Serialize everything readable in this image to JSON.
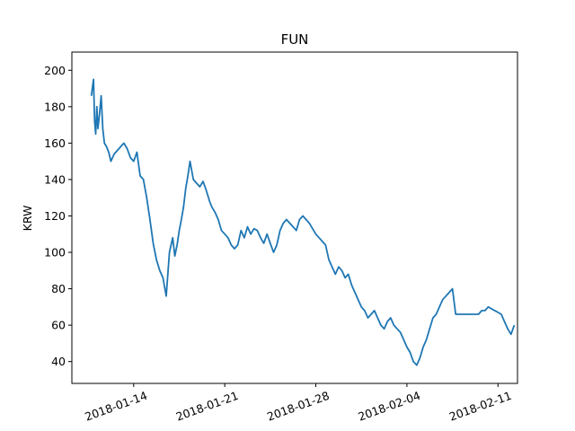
{
  "chart_data": {
    "type": "line",
    "title": "FUN",
    "xlabel": "",
    "ylabel": "KRW",
    "xlim": [
      "2018-01-09T06:00",
      "2018-02-12T12:00"
    ],
    "ylim": [
      28,
      210
    ],
    "x_ticks": [
      "2018-01-14",
      "2018-01-21",
      "2018-01-28",
      "2018-02-04",
      "2018-02-11"
    ],
    "y_ticks": [
      40,
      60,
      80,
      100,
      120,
      140,
      160,
      180,
      200
    ],
    "grid": false,
    "legend": "none",
    "colors": {
      "line": "#1f77b4",
      "axes": "#000000",
      "background": "#ffffff"
    },
    "series": [
      {
        "x": [
          "2018-01-10T18:00",
          "2018-01-10T22:00",
          "2018-01-11T00:00",
          "2018-01-11T02:00",
          "2018-01-11T04:00",
          "2018-01-11T06:00",
          "2018-01-11T09:00",
          "2018-01-11T12:00",
          "2018-01-11T15:00",
          "2018-01-11T18:00",
          "2018-01-11T22:00",
          "2018-01-12T02:00",
          "2018-01-12T06:00",
          "2018-01-12T12:00",
          "2018-01-12T18:00",
          "2018-01-13T00:00",
          "2018-01-13T06:00",
          "2018-01-13T12:00",
          "2018-01-13T18:00",
          "2018-01-14T00:00",
          "2018-01-14T06:00",
          "2018-01-14T12:00",
          "2018-01-14T18:00",
          "2018-01-15T00:00",
          "2018-01-15T06:00",
          "2018-01-15T12:00",
          "2018-01-15T18:00",
          "2018-01-16T00:00",
          "2018-01-16T06:00",
          "2018-01-16T12:00",
          "2018-01-16T18:00",
          "2018-01-17T00:00",
          "2018-01-17T04:00",
          "2018-01-17T08:00",
          "2018-01-17T12:00",
          "2018-01-17T16:00",
          "2018-01-17T20:00",
          "2018-01-18T00:00",
          "2018-01-18T04:00",
          "2018-01-18T08:00",
          "2018-01-18T14:00",
          "2018-01-18T20:00",
          "2018-01-19T02:00",
          "2018-01-19T08:00",
          "2018-01-19T14:00",
          "2018-01-19T20:00",
          "2018-01-20T00:00",
          "2018-01-20T06:00",
          "2018-01-20T12:00",
          "2018-01-20T18:00",
          "2018-01-21T00:00",
          "2018-01-21T06:00",
          "2018-01-21T12:00",
          "2018-01-21T18:00",
          "2018-01-22T00:00",
          "2018-01-22T06:00",
          "2018-01-22T12:00",
          "2018-01-22T18:00",
          "2018-01-23T00:00",
          "2018-01-23T06:00",
          "2018-01-23T12:00",
          "2018-01-23T18:00",
          "2018-01-24T00:00",
          "2018-01-24T06:00",
          "2018-01-24T12:00",
          "2018-01-24T18:00",
          "2018-01-25T00:00",
          "2018-01-25T06:00",
          "2018-01-25T12:00",
          "2018-01-25T18:00",
          "2018-01-26T00:00",
          "2018-01-26T06:00",
          "2018-01-26T12:00",
          "2018-01-26T18:00",
          "2018-01-27T00:00",
          "2018-01-27T06:00",
          "2018-01-27T12:00",
          "2018-01-27T18:00",
          "2018-01-28T00:00",
          "2018-01-28T06:00",
          "2018-01-28T12:00",
          "2018-01-28T18:00",
          "2018-01-29T00:00",
          "2018-01-29T06:00",
          "2018-01-29T12:00",
          "2018-01-29T18:00",
          "2018-01-30T00:00",
          "2018-01-30T06:00",
          "2018-01-30T12:00",
          "2018-01-30T18:00",
          "2018-01-31T00:00",
          "2018-01-31T06:00",
          "2018-01-31T12:00",
          "2018-01-31T18:00",
          "2018-02-01T00:00",
          "2018-02-01T06:00",
          "2018-02-01T12:00",
          "2018-02-01T18:00",
          "2018-02-02T00:00",
          "2018-02-02T06:00",
          "2018-02-02T12:00",
          "2018-02-02T18:00",
          "2018-02-03T00:00",
          "2018-02-03T06:00",
          "2018-02-03T12:00",
          "2018-02-03T18:00",
          "2018-02-04T00:00",
          "2018-02-04T06:00",
          "2018-02-04T12:00",
          "2018-02-04T18:00",
          "2018-02-05T00:00",
          "2018-02-05T06:00",
          "2018-02-05T12:00",
          "2018-02-05T18:00",
          "2018-02-06T00:00",
          "2018-02-06T06:00",
          "2018-02-06T12:00",
          "2018-02-06T18:00",
          "2018-02-07T00:00",
          "2018-02-07T06:00",
          "2018-02-07T12:00",
          "2018-02-07T18:00",
          "2018-02-08T00:00",
          "2018-02-08T06:00",
          "2018-02-08T12:00",
          "2018-02-08T18:00",
          "2018-02-09T00:00",
          "2018-02-09T06:00",
          "2018-02-09T12:00",
          "2018-02-09T18:00",
          "2018-02-10T00:00",
          "2018-02-10T06:00",
          "2018-02-10T12:00",
          "2018-02-10T18:00",
          "2018-02-11T00:00",
          "2018-02-11T06:00",
          "2018-02-11T12:00",
          "2018-02-11T18:00",
          "2018-02-12T00:00",
          "2018-02-12T06:00"
        ],
        "values": [
          186,
          195,
          172,
          165,
          180,
          168,
          176,
          186,
          168,
          160,
          158,
          155,
          150,
          154,
          156,
          158,
          160,
          157,
          152,
          150,
          155,
          142,
          140,
          130,
          118,
          105,
          96,
          90,
          86,
          76,
          100,
          108,
          98,
          104,
          112,
          118,
          125,
          135,
          142,
          150,
          140,
          138,
          136,
          139,
          134,
          128,
          125,
          122,
          118,
          112,
          110,
          108,
          104,
          102,
          104,
          112,
          108,
          114,
          110,
          113,
          112,
          108,
          105,
          110,
          105,
          100,
          104,
          112,
          116,
          118,
          116,
          114,
          112,
          118,
          120,
          118,
          116,
          113,
          110,
          108,
          106,
          104,
          96,
          92,
          88,
          92,
          90,
          86,
          88,
          82,
          78,
          74,
          70,
          68,
          64,
          66,
          68,
          64,
          60,
          58,
          62,
          64,
          60,
          58,
          56,
          52,
          48,
          45,
          40,
          38,
          42,
          48,
          52,
          58,
          64,
          66,
          70,
          74,
          76,
          78,
          80,
          66,
          66,
          66,
          66,
          66,
          66,
          66,
          66,
          68,
          68,
          70,
          69,
          68,
          67,
          66,
          62,
          58,
          55,
          60
        ]
      }
    ]
  }
}
